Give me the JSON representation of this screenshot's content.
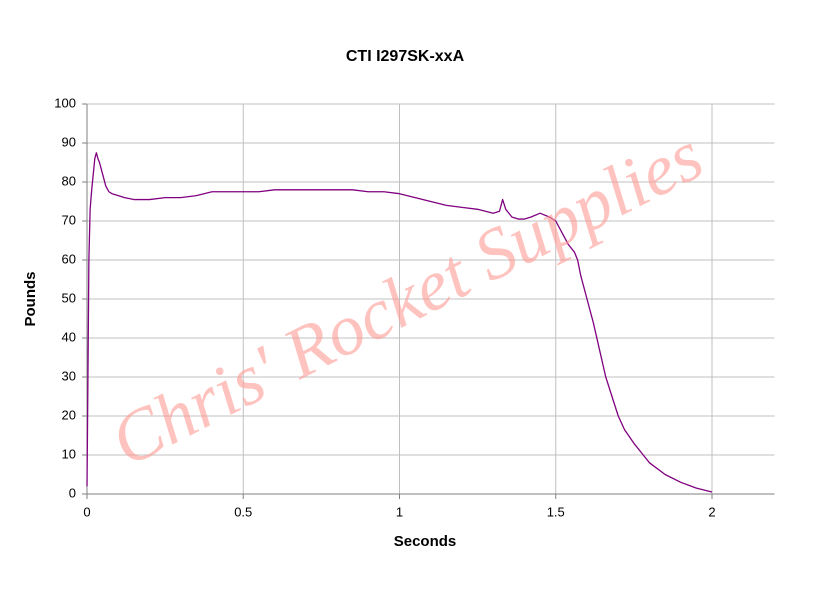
{
  "chart_data": {
    "type": "line",
    "title": "CTI I297SK-xxA",
    "x_label": "Seconds",
    "y_label": "Pounds",
    "watermark": "Chris' Rocket Supplies",
    "color": "#800080",
    "x": [
      0,
      0.003,
      0.006,
      0.01,
      0.015,
      0.02,
      0.025,
      0.03,
      0.035,
      0.04,
      0.05,
      0.06,
      0.07,
      0.08,
      0.1,
      0.12,
      0.15,
      0.2,
      0.25,
      0.3,
      0.35,
      0.4,
      0.45,
      0.5,
      0.55,
      0.6,
      0.65,
      0.7,
      0.75,
      0.8,
      0.85,
      0.9,
      0.95,
      1.0,
      1.05,
      1.1,
      1.15,
      1.2,
      1.25,
      1.3,
      1.32,
      1.33,
      1.34,
      1.36,
      1.38,
      1.4,
      1.42,
      1.45,
      1.48,
      1.5,
      1.52,
      1.54,
      1.56,
      1.57,
      1.58,
      1.6,
      1.62,
      1.64,
      1.66,
      1.68,
      1.7,
      1.72,
      1.75,
      1.78,
      1.8,
      1.85,
      1.9,
      1.95,
      2.0
    ],
    "values": [
      2,
      30,
      60,
      73,
      78,
      82,
      86,
      87.5,
      86,
      85,
      82,
      79,
      77.5,
      77,
      76.5,
      76,
      75.5,
      75.5,
      76,
      76,
      76.5,
      77.5,
      77.5,
      77.5,
      77.5,
      78,
      78,
      78,
      78,
      78,
      78,
      77.5,
      77.5,
      77,
      76,
      75,
      74,
      73.5,
      73,
      72,
      72.5,
      75.5,
      73,
      71,
      70.5,
      70.5,
      71,
      72,
      71,
      70,
      67,
      64,
      62,
      60,
      56,
      50,
      44,
      37,
      30,
      25,
      20,
      16.5,
      13,
      10,
      8,
      5,
      3,
      1.5,
      0.5
    ],
    "xlim": [
      0,
      2.2
    ],
    "xticks": [
      0,
      0.5,
      1,
      1.5,
      2
    ],
    "ylim": [
      0,
      100
    ],
    "yticks": [
      0,
      10,
      20,
      30,
      40,
      50,
      60,
      70,
      80,
      90,
      100
    ],
    "grid": true
  }
}
